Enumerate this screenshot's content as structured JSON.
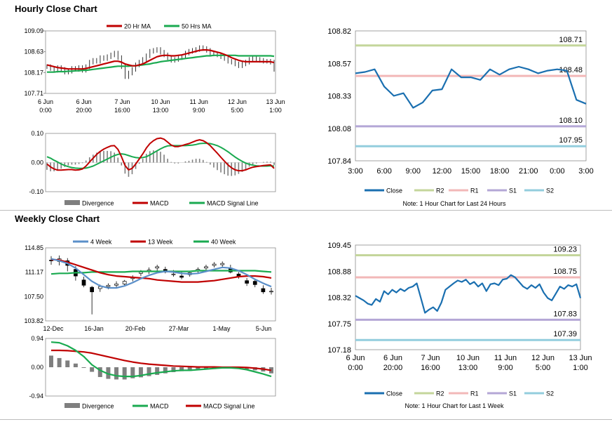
{
  "sections": {
    "hourly_title": "Hourly Close Chart",
    "weekly_title": "Weekly Close Chart"
  },
  "colors": {
    "ma_red": "#c00000",
    "ma_green": "#1aaa50",
    "close_blue": "#1a6fb0",
    "r2": "#c4d69b",
    "r1": "#f2b8b8",
    "s1": "#b4a7d6",
    "s2": "#93cddd",
    "divergence": "#7f7f7f",
    "week4_blue": "#5b8fc9"
  },
  "chart_data": [
    {
      "id": "hourly_price",
      "type": "candlestick",
      "ylim": [
        107.71,
        109.09
      ],
      "yticks": [
        "109.09",
        "108.63",
        "108.17",
        "107.71"
      ],
      "xticks": [
        {
          "line1": "6 Jun",
          "line2": "0:00"
        },
        {
          "line1": "6 Jun",
          "line2": "20:00"
        },
        {
          "line1": "7 Jun",
          "line2": "16:00"
        },
        {
          "line1": "10 Jun",
          "line2": "13:00"
        },
        {
          "line1": "11 Jun",
          "line2": "9:00"
        },
        {
          "line1": "12 Jun",
          "line2": "5:00"
        },
        {
          "line1": "13 Jun",
          "line2": "1:00"
        }
      ],
      "legend": [
        "20 Hr MA",
        "50 Hrs MA"
      ],
      "close": [
        108.3,
        108.26,
        108.22,
        108.28,
        108.24,
        108.18,
        108.2,
        108.26,
        108.24,
        108.28,
        108.22,
        108.3,
        108.4,
        108.44,
        108.42,
        108.5,
        108.48,
        108.52,
        108.56,
        108.6,
        108.5,
        108.3,
        108.08,
        108.16,
        108.24,
        108.34,
        108.4,
        108.46,
        108.54,
        108.64,
        108.66,
        108.68,
        108.62,
        108.56,
        108.5,
        108.44,
        108.46,
        108.5,
        108.52,
        108.6,
        108.64,
        108.66,
        108.68,
        108.72,
        108.7,
        108.66,
        108.6,
        108.58,
        108.56,
        108.52,
        108.48,
        108.42,
        108.4,
        108.36,
        108.32,
        108.36,
        108.4,
        108.46,
        108.48,
        108.46,
        108.44,
        108.42,
        108.42,
        108.4,
        108.24
      ],
      "ma20": [
        108.34,
        108.32,
        108.3,
        108.28,
        108.27,
        108.26,
        108.25,
        108.25,
        108.25,
        108.25,
        108.25,
        108.26,
        108.28,
        108.3,
        108.32,
        108.34,
        108.36,
        108.38,
        108.4,
        108.42,
        108.42,
        108.4,
        108.36,
        108.34,
        108.32,
        108.32,
        108.34,
        108.36,
        108.4,
        108.44,
        108.48,
        108.52,
        108.54,
        108.55,
        108.55,
        108.54,
        108.54,
        108.55,
        108.56,
        108.58,
        108.6,
        108.62,
        108.64,
        108.66,
        108.67,
        108.67,
        108.66,
        108.64,
        108.62,
        108.6,
        108.57,
        108.54,
        108.5,
        108.47,
        108.44,
        108.42,
        108.41,
        108.41,
        108.41,
        108.41,
        108.41,
        108.41,
        108.41,
        108.41,
        108.39
      ],
      "ma50": [
        108.18,
        108.18,
        108.18,
        108.19,
        108.19,
        108.19,
        108.2,
        108.2,
        108.21,
        108.21,
        108.22,
        108.22,
        108.23,
        108.24,
        108.25,
        108.26,
        108.27,
        108.28,
        108.29,
        108.3,
        108.31,
        108.31,
        108.31,
        108.31,
        108.32,
        108.32,
        108.33,
        108.34,
        108.35,
        108.36,
        108.38,
        108.39,
        108.41,
        108.42,
        108.43,
        108.44,
        108.45,
        108.46,
        108.47,
        108.48,
        108.49,
        108.5,
        108.51,
        108.52,
        108.53,
        108.54,
        108.54,
        108.55,
        108.55,
        108.55,
        108.55,
        108.55,
        108.55,
        108.55,
        108.54,
        108.54,
        108.54,
        108.54,
        108.54,
        108.54,
        108.54,
        108.54,
        108.54,
        108.54,
        108.53
      ]
    },
    {
      "id": "hourly_macd",
      "type": "macd",
      "ylim": [
        -0.1,
        0.1
      ],
      "yticks": [
        "0.10",
        "0.00",
        "-0.10"
      ],
      "legend": [
        "Divergence",
        "MACD",
        "MACD Signal Line"
      ],
      "macd": [
        -0.005,
        -0.015,
        -0.022,
        -0.026,
        -0.026,
        -0.025,
        -0.024,
        -0.024,
        -0.026,
        -0.025,
        -0.022,
        -0.012,
        0.002,
        0.015,
        0.028,
        0.038,
        0.046,
        0.052,
        0.057,
        0.058,
        0.045,
        0.02,
        -0.01,
        -0.025,
        -0.02,
        -0.005,
        0.012,
        0.03,
        0.05,
        0.065,
        0.075,
        0.082,
        0.084,
        0.08,
        0.07,
        0.06,
        0.055,
        0.055,
        0.058,
        0.062,
        0.065,
        0.07,
        0.075,
        0.078,
        0.075,
        0.068,
        0.058,
        0.045,
        0.032,
        0.018,
        0.005,
        -0.008,
        -0.018,
        -0.025,
        -0.028,
        -0.028,
        -0.025,
        -0.02,
        -0.016,
        -0.014,
        -0.012,
        -0.01,
        -0.009,
        -0.008,
        -0.02
      ],
      "signal": [
        0.02,
        0.015,
        0.008,
        0.002,
        -0.005,
        -0.01,
        -0.014,
        -0.017,
        -0.019,
        -0.02,
        -0.02,
        -0.019,
        -0.016,
        -0.012,
        -0.006,
        0.0,
        0.006,
        0.012,
        0.018,
        0.024,
        0.028,
        0.03,
        0.028,
        0.024,
        0.02,
        0.017,
        0.016,
        0.017,
        0.02,
        0.026,
        0.033,
        0.04,
        0.047,
        0.053,
        0.057,
        0.058,
        0.058,
        0.058,
        0.058,
        0.058,
        0.059,
        0.06,
        0.062,
        0.065,
        0.066,
        0.066,
        0.065,
        0.062,
        0.058,
        0.052,
        0.045,
        0.037,
        0.028,
        0.019,
        0.011,
        0.004,
        -0.002,
        -0.006,
        -0.009,
        -0.011,
        -0.012,
        -0.012,
        -0.012,
        -0.011,
        -0.012
      ]
    },
    {
      "id": "hourly_24h",
      "type": "line",
      "ylim": [
        107.84,
        108.82
      ],
      "yticks": [
        "108.82",
        "108.57",
        "108.33",
        "108.08",
        "107.84"
      ],
      "xticks": [
        "3:00",
        "6:00",
        "9:00",
        "12:00",
        "15:00",
        "18:00",
        "21:00",
        "0:00",
        "3:00"
      ],
      "close": [
        108.5,
        108.51,
        108.53,
        108.4,
        108.33,
        108.35,
        108.24,
        108.28,
        108.37,
        108.38,
        108.53,
        108.47,
        108.47,
        108.45,
        108.53,
        108.49,
        108.53,
        108.55,
        108.53,
        108.5,
        108.52,
        108.53,
        108.52,
        108.3,
        108.27
      ],
      "levels": [
        {
          "name": "R2",
          "value": 108.71,
          "label": "108.71"
        },
        {
          "name": "R1",
          "value": 108.48,
          "label": "108.48"
        },
        {
          "name": "S1",
          "value": 108.1,
          "label": "108.10"
        },
        {
          "name": "S2",
          "value": 107.95,
          "label": "107.95"
        }
      ],
      "legend": [
        "Close",
        "R2",
        "R1",
        "S1",
        "S2"
      ],
      "note": "Note: 1 Hour Chart for Last 24 Hours"
    },
    {
      "id": "weekly_price",
      "type": "candlestick",
      "ylim": [
        103.82,
        114.85
      ],
      "yticks": [
        "114.85",
        "111.17",
        "107.50",
        "103.82"
      ],
      "xticks": [
        "12-Dec",
        "16-Jan",
        "20-Feb",
        "27-Mar",
        "1-May",
        "5-Jun"
      ],
      "legend": [
        "4 Week",
        "13 Week",
        "40 Week"
      ],
      "candles": [
        {
          "o": 113.0,
          "h": 113.6,
          "l": 112.3,
          "c": 112.9
        },
        {
          "o": 112.8,
          "h": 113.7,
          "l": 112.2,
          "c": 113.2
        },
        {
          "o": 112.9,
          "h": 113.3,
          "l": 111.3,
          "c": 112.2
        },
        {
          "o": 111.6,
          "h": 112.1,
          "l": 109.9,
          "c": 110.6
        },
        {
          "o": 110.0,
          "h": 110.5,
          "l": 108.9,
          "c": 109.2
        },
        {
          "o": 108.9,
          "h": 109.1,
          "l": 104.8,
          "c": 108.2
        },
        {
          "o": 108.7,
          "h": 109.3,
          "l": 108.2,
          "c": 109.0
        },
        {
          "o": 109.0,
          "h": 109.5,
          "l": 108.6,
          "c": 109.2
        },
        {
          "o": 109.2,
          "h": 109.8,
          "l": 108.9,
          "c": 109.4
        },
        {
          "o": 109.4,
          "h": 110.0,
          "l": 109.1,
          "c": 109.8
        },
        {
          "o": 110.2,
          "h": 110.7,
          "l": 109.8,
          "c": 110.4
        },
        {
          "o": 111.0,
          "h": 111.5,
          "l": 110.6,
          "c": 111.2
        },
        {
          "o": 111.3,
          "h": 111.9,
          "l": 110.9,
          "c": 111.5
        },
        {
          "o": 111.8,
          "h": 112.3,
          "l": 111.4,
          "c": 112.0
        },
        {
          "o": 111.6,
          "h": 112.0,
          "l": 111.0,
          "c": 111.2
        },
        {
          "o": 110.9,
          "h": 111.5,
          "l": 110.5,
          "c": 110.9
        },
        {
          "o": 110.6,
          "h": 111.2,
          "l": 110.1,
          "c": 110.4
        },
        {
          "o": 110.8,
          "h": 111.4,
          "l": 110.5,
          "c": 111.1
        },
        {
          "o": 111.4,
          "h": 111.9,
          "l": 111.0,
          "c": 111.6
        },
        {
          "o": 111.8,
          "h": 112.3,
          "l": 111.4,
          "c": 112.0
        },
        {
          "o": 112.2,
          "h": 112.7,
          "l": 111.9,
          "c": 112.4
        },
        {
          "o": 112.3,
          "h": 112.8,
          "l": 111.9,
          "c": 112.5
        },
        {
          "o": 111.8,
          "h": 112.3,
          "l": 111.0,
          "c": 111.2
        },
        {
          "o": 110.9,
          "h": 111.2,
          "l": 110.2,
          "c": 110.5
        },
        {
          "o": 109.9,
          "h": 110.3,
          "l": 109.1,
          "c": 109.5
        },
        {
          "o": 109.8,
          "h": 110.1,
          "l": 108.9,
          "c": 109.3
        },
        {
          "o": 108.7,
          "h": 109.2,
          "l": 107.9,
          "c": 108.2
        },
        {
          "o": 108.2,
          "h": 108.8,
          "l": 107.8,
          "c": 108.3
        }
      ],
      "ma4": [
        113.2,
        112.9,
        112.5,
        111.8,
        110.8,
        109.8,
        109.1,
        108.8,
        108.8,
        109.1,
        109.6,
        110.2,
        110.7,
        111.1,
        111.3,
        111.2,
        111.0,
        110.9,
        111.0,
        111.3,
        111.6,
        111.9,
        111.8,
        111.4,
        110.8,
        110.1,
        109.5,
        109.0
      ],
      "ma13": [
        113.1,
        113.0,
        112.7,
        112.3,
        111.9,
        111.5,
        111.1,
        110.8,
        110.6,
        110.5,
        110.4,
        110.3,
        110.2,
        110.0,
        109.9,
        109.8,
        109.7,
        109.7,
        109.7,
        109.8,
        109.9,
        110.1,
        110.3,
        110.5,
        110.6,
        110.6,
        110.5,
        110.3
      ],
      "ma40": [
        110.9,
        111.0,
        111.0,
        111.1,
        111.1,
        111.2,
        111.2,
        111.2,
        111.2,
        111.2,
        111.3,
        111.3,
        111.3,
        111.3,
        111.3,
        111.3,
        111.3,
        111.3,
        111.4,
        111.4,
        111.4,
        111.4,
        111.4,
        111.4,
        111.4,
        111.4,
        111.3,
        111.2
      ]
    },
    {
      "id": "weekly_macd",
      "type": "macd",
      "ylim": [
        -0.94,
        0.94
      ],
      "yticks": [
        "0.94",
        "0.00",
        "-0.94"
      ],
      "legend": [
        "Divergence",
        "MACD",
        "MACD Signal Line"
      ],
      "macd": [
        0.82,
        0.8,
        0.7,
        0.55,
        0.35,
        0.08,
        -0.1,
        -0.22,
        -0.28,
        -0.3,
        -0.3,
        -0.27,
        -0.22,
        -0.18,
        -0.15,
        -0.12,
        -0.1,
        -0.1,
        -0.08,
        -0.06,
        -0.04,
        -0.02,
        -0.02,
        -0.04,
        -0.08,
        -0.15,
        -0.22,
        -0.3
      ],
      "signal": [
        0.55,
        0.55,
        0.54,
        0.52,
        0.5,
        0.46,
        0.4,
        0.34,
        0.28,
        0.22,
        0.17,
        0.13,
        0.1,
        0.08,
        0.06,
        0.04,
        0.03,
        0.02,
        0.01,
        0.01,
        0.01,
        0.0,
        0.0,
        0.0,
        -0.01,
        -0.03,
        -0.06,
        -0.1
      ],
      "divergence": [
        0.38,
        0.3,
        0.22,
        0.12,
        0.0,
        -0.15,
        -0.32,
        -0.38,
        -0.4,
        -0.4,
        -0.36,
        -0.33,
        -0.29,
        -0.25,
        -0.2,
        -0.16,
        -0.13,
        -0.12,
        -0.1,
        -0.08,
        -0.06,
        -0.04,
        -0.03,
        -0.04,
        -0.06,
        -0.1,
        -0.14,
        -0.2
      ]
    },
    {
      "id": "weekly_1w",
      "type": "line",
      "ylim": [
        107.18,
        109.45
      ],
      "yticks": [
        "109.45",
        "108.88",
        "108.32",
        "107.75",
        "107.18"
      ],
      "xticks": [
        {
          "line1": "6 Jun",
          "line2": "0:00"
        },
        {
          "line1": "6 Jun",
          "line2": "20:00"
        },
        {
          "line1": "7 Jun",
          "line2": "16:00"
        },
        {
          "line1": "10 Jun",
          "line2": "13:00"
        },
        {
          "line1": "11 Jun",
          "line2": "9:00"
        },
        {
          "line1": "12 Jun",
          "line2": "5:00"
        },
        {
          "line1": "13 Jun",
          "line2": "1:00"
        }
      ],
      "close": [
        108.35,
        108.3,
        108.25,
        108.18,
        108.15,
        108.28,
        108.22,
        108.45,
        108.38,
        108.48,
        108.42,
        108.5,
        108.45,
        108.52,
        108.55,
        108.62,
        108.3,
        107.98,
        108.05,
        108.1,
        108.02,
        108.2,
        108.48,
        108.55,
        108.62,
        108.68,
        108.65,
        108.7,
        108.6,
        108.65,
        108.55,
        108.62,
        108.45,
        108.6,
        108.62,
        108.58,
        108.7,
        108.72,
        108.8,
        108.75,
        108.65,
        108.55,
        108.5,
        108.58,
        108.52,
        108.6,
        108.42,
        108.3,
        108.25,
        108.4,
        108.55,
        108.5,
        108.58,
        108.55,
        108.6,
        108.3
      ],
      "levels": [
        {
          "name": "R2",
          "value": 109.23,
          "label": "109.23"
        },
        {
          "name": "R1",
          "value": 108.75,
          "label": "108.75"
        },
        {
          "name": "S1",
          "value": 107.83,
          "label": "107.83"
        },
        {
          "name": "S2",
          "value": 107.39,
          "label": "107.39"
        }
      ],
      "legend": [
        "Close",
        "R2",
        "R1",
        "S1",
        "S2"
      ],
      "note": "Note: 1 Hour Chart for Last 1 Week"
    }
  ]
}
